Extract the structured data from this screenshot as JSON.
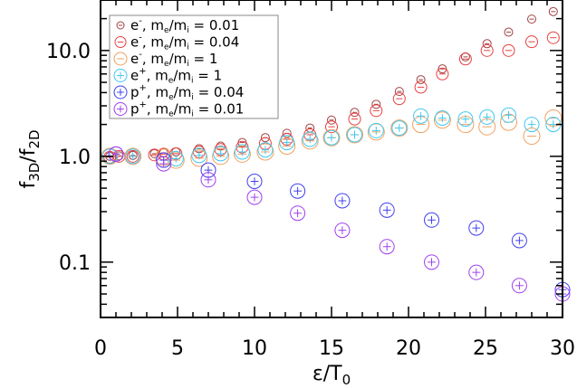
{
  "chart_data": {
    "type": "scatter",
    "title": "",
    "xlabel": "ε/T0",
    "ylabel": "f3D/f2D",
    "xlim": [
      0,
      30
    ],
    "ylim": [
      0.03,
      30
    ],
    "yscale": "log",
    "x_ticks": [
      "0",
      "5",
      "10",
      "15",
      "20",
      "25",
      "30"
    ],
    "y_ticks": [
      "0.1",
      "1.0",
      "10.0"
    ],
    "grid": false,
    "legend_position": "upper left",
    "series": [
      {
        "name": "e-, me/mi = 0.01",
        "color": "#a04040",
        "marker": "circle-minus-small",
        "x": [
          0.6,
          1.2,
          2.1,
          3.5,
          4.1,
          4.9,
          6.4,
          7.8,
          9.2,
          10.7,
          12.1,
          13.6,
          15.0,
          16.5,
          17.9,
          19.4,
          20.8,
          22.2,
          23.7,
          25.1,
          26.5,
          28.0,
          29.4
        ],
        "y": [
          1.0,
          1.01,
          1.02,
          1.06,
          1.08,
          1.1,
          1.18,
          1.25,
          1.35,
          1.5,
          1.65,
          1.85,
          2.2,
          2.6,
          3.1,
          4.1,
          5.3,
          6.7,
          8.7,
          11.6,
          14.9,
          19.8,
          23.3
        ]
      },
      {
        "name": "e-, me/mi = 0.04",
        "color": "#e84040",
        "marker": "circle-minus",
        "x": [
          0.6,
          1.2,
          2.1,
          3.5,
          4.1,
          4.9,
          6.4,
          7.8,
          9.2,
          10.7,
          12.1,
          13.6,
          15.0,
          16.5,
          17.9,
          19.4,
          20.8,
          22.2,
          23.7,
          25.1,
          26.5,
          28.0,
          29.4
        ],
        "y": [
          0.98,
          1.0,
          1.0,
          1.03,
          1.05,
          1.06,
          1.1,
          1.16,
          1.22,
          1.32,
          1.45,
          1.6,
          1.9,
          2.25,
          2.7,
          3.5,
          4.5,
          6.0,
          8.3,
          10.0,
          10.0,
          12.1,
          13.2
        ]
      },
      {
        "name": "e-, me/mi = 1",
        "color": "#f0a060",
        "marker": "circle-minus-large",
        "x": [
          0.6,
          2.1,
          4.1,
          4.9,
          6.4,
          7.8,
          9.2,
          10.7,
          12.1,
          13.6,
          15.0,
          16.5,
          17.9,
          19.4,
          20.8,
          22.2,
          23.7,
          25.1,
          26.5,
          28.0,
          29.4
        ],
        "y": [
          1.0,
          1.0,
          0.98,
          0.92,
          0.96,
          1.0,
          1.05,
          1.1,
          1.25,
          1.4,
          1.5,
          1.6,
          1.7,
          1.85,
          2.0,
          2.2,
          2.0,
          1.9,
          2.1,
          1.55,
          2.3
        ]
      },
      {
        "name": "e+, me/mi = 1",
        "color": "#40c8f0",
        "marker": "circle-plus",
        "x": [
          0.6,
          2.1,
          4.9,
          6.4,
          7.8,
          9.2,
          10.7,
          12.1,
          13.6,
          15.0,
          16.5,
          17.9,
          19.4,
          20.8,
          22.2,
          23.7,
          25.1,
          26.5,
          28.0,
          29.4
        ],
        "y": [
          1.0,
          1.0,
          0.95,
          1.02,
          1.06,
          1.1,
          1.15,
          1.35,
          1.45,
          1.5,
          1.6,
          1.75,
          1.85,
          2.4,
          2.3,
          2.25,
          2.35,
          2.45,
          2.0,
          2.0
        ]
      },
      {
        "name": "p+, me/mi = 0.04",
        "color": "#4040f0",
        "marker": "circle-plus",
        "x": [
          1.0,
          4.1,
          7.0,
          10.0,
          12.8,
          15.7,
          18.6,
          21.5,
          24.4,
          27.2,
          30.0
        ],
        "y": [
          1.05,
          0.92,
          0.74,
          0.58,
          0.47,
          0.38,
          0.31,
          0.25,
          0.21,
          0.16,
          0.055
        ]
      },
      {
        "name": "p+, me/mi = 0.01",
        "color": "#a040f0",
        "marker": "circle-plus",
        "x": [
          1.0,
          4.1,
          7.0,
          10.0,
          12.8,
          15.7,
          18.6,
          21.5,
          24.4,
          27.2,
          30.0
        ],
        "y": [
          1.05,
          0.85,
          0.6,
          0.41,
          0.29,
          0.2,
          0.14,
          0.1,
          0.08,
          0.06,
          0.05
        ]
      }
    ]
  },
  "legend": {
    "items": [
      {
        "particle": "e",
        "sup": "-",
        "ratio": "0.01",
        "color": "#a04040",
        "glyph": "minus",
        "size": 4
      },
      {
        "particle": "e",
        "sup": "-",
        "ratio": "0.04",
        "color": "#e84040",
        "glyph": "minus",
        "size": 6
      },
      {
        "particle": "e",
        "sup": "-",
        "ratio": "1",
        "color": "#f0a060",
        "glyph": "minus",
        "size": 7
      },
      {
        "particle": "e",
        "sup": "+",
        "ratio": "1",
        "color": "#40c8f0",
        "glyph": "plus",
        "size": 7
      },
      {
        "particle": "p",
        "sup": "+",
        "ratio": "0.04",
        "color": "#4040f0",
        "glyph": "plus",
        "size": 7
      },
      {
        "particle": "p",
        "sup": "+",
        "ratio": "0.01",
        "color": "#a040f0",
        "glyph": "plus",
        "size": 7
      }
    ],
    "mass_label": "m",
    "sub_e": "e",
    "sub_i": "i",
    "equals": "="
  },
  "axes": {
    "x_label_main": "ε/T",
    "x_label_sub": "0",
    "y_label_f1": "f",
    "y_label_sub1": "3D",
    "y_label_slash": "/f",
    "y_label_sub2": "2D"
  }
}
